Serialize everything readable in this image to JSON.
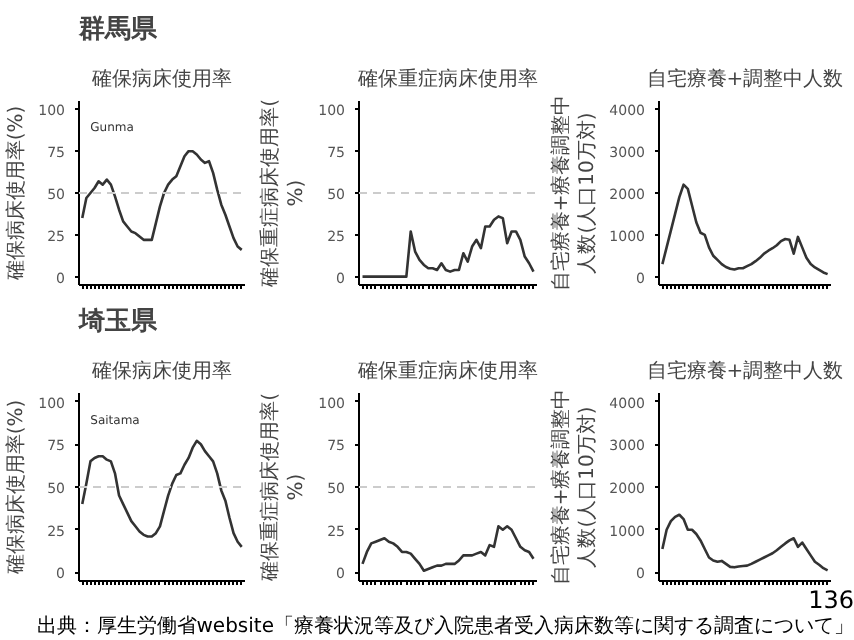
{
  "chart_data": [
    {
      "type": "line",
      "title": "確保病床使用率",
      "ylabel": "確保病床使用率(%)",
      "annotations": [
        "群馬県",
        "Gunma"
      ],
      "categories": [
        null,
        null,
        null,
        null,
        null,
        null,
        null,
        null,
        null,
        null,
        null,
        null,
        null,
        null,
        null,
        null,
        null,
        null,
        null,
        null,
        null,
        null,
        null,
        null,
        null,
        null,
        null,
        null,
        null,
        null,
        null,
        null,
        null,
        null,
        null,
        null,
        null,
        null,
        null,
        null
      ],
      "series": [
        {
          "color": "#333333",
          "values": [
            35,
            47,
            50,
            53,
            57,
            55,
            58,
            55,
            48,
            40,
            33,
            30,
            27,
            26,
            24,
            22,
            22,
            22,
            32,
            42,
            50,
            55,
            58,
            60,
            66,
            72,
            75,
            75,
            73,
            70,
            68,
            69,
            62,
            52,
            43,
            37,
            30,
            23,
            18,
            16
          ]
        }
      ],
      "ylim": [
        -5,
        105
      ],
      "yticks": [
        0,
        25,
        50,
        75,
        100
      ],
      "ref_lines": [
        {
          "axis": "y",
          "value": 50,
          "color": "#cccccc",
          "line_style": "dashed"
        }
      ],
      "grid": false
    },
    {
      "type": "line",
      "title": "確保重症病床使用率",
      "ylabel": "確保重症病床使用率(%)",
      "categories": [
        null,
        null,
        null,
        null,
        null,
        null,
        null,
        null,
        null,
        null,
        null,
        null,
        null,
        null,
        null,
        null,
        null,
        null,
        null,
        null,
        null,
        null,
        null,
        null,
        null,
        null,
        null,
        null,
        null,
        null,
        null,
        null,
        null,
        null,
        null,
        null,
        null,
        null,
        null,
        null
      ],
      "series": [
        {
          "color": "#333333",
          "values": [
            0,
            0,
            0,
            0,
            0,
            0,
            0,
            0,
            0,
            0,
            0,
            27,
            15,
            10,
            7,
            5,
            5,
            4,
            8,
            4,
            3,
            4,
            4,
            14,
            9,
            18,
            22,
            17,
            30,
            30,
            34,
            36,
            35,
            20,
            27,
            27,
            22,
            12,
            8,
            3
          ]
        }
      ],
      "ylim": [
        -5,
        105
      ],
      "yticks": [
        0,
        25,
        50,
        75,
        100
      ],
      "ref_lines": [
        {
          "axis": "y",
          "value": 50,
          "color": "#cccccc",
          "line_style": "dashed"
        }
      ],
      "grid": false
    },
    {
      "type": "line",
      "title": "自宅療養+調整中人数",
      "ylabel": "自宅療養+療養調整中人数(人口10万対)",
      "categories": [
        null,
        null,
        null,
        null,
        null,
        null,
        null,
        null,
        null,
        null,
        null,
        null,
        null,
        null,
        null,
        null,
        null,
        null,
        null,
        null,
        null,
        null,
        null,
        null,
        null,
        null,
        null,
        null,
        null,
        null,
        null,
        null,
        null,
        null,
        null,
        null,
        null,
        null,
        null,
        null
      ],
      "series": [
        {
          "color": "#333333",
          "values": [
            300,
            700,
            1100,
            1500,
            1900,
            2200,
            2100,
            1700,
            1300,
            1050,
            1000,
            700,
            500,
            400,
            300,
            230,
            190,
            170,
            200,
            200,
            250,
            300,
            370,
            450,
            550,
            620,
            680,
            750,
            850,
            900,
            880,
            550,
            950,
            700,
            450,
            300,
            220,
            160,
            100,
            60
          ]
        }
      ],
      "ylim": [
        -200,
        4200
      ],
      "yticks": [
        0,
        1000,
        2000,
        3000,
        4000
      ],
      "grid": false
    },
    {
      "type": "line",
      "title": "確保病床使用率",
      "ylabel": "確保病床使用率(%)",
      "annotations": [
        "埼玉県",
        "Saitama"
      ],
      "categories": [
        null,
        null,
        null,
        null,
        null,
        null,
        null,
        null,
        null,
        null,
        null,
        null,
        null,
        null,
        null,
        null,
        null,
        null,
        null,
        null,
        null,
        null,
        null,
        null,
        null,
        null,
        null,
        null,
        null,
        null,
        null,
        null,
        null,
        null,
        null,
        null,
        null,
        null,
        null,
        null
      ],
      "series": [
        {
          "color": "#333333",
          "values": [
            40,
            52,
            65,
            67,
            68,
            68,
            66,
            65,
            58,
            45,
            40,
            35,
            30,
            27,
            24,
            22,
            21,
            21,
            23,
            27,
            36,
            45,
            52,
            57,
            58,
            63,
            67,
            73,
            77,
            75,
            71,
            68,
            65,
            58,
            48,
            42,
            32,
            23,
            18,
            15
          ]
        }
      ],
      "ylim": [
        -5,
        105
      ],
      "yticks": [
        0,
        25,
        50,
        75,
        100
      ],
      "ref_lines": [
        {
          "axis": "y",
          "value": 50,
          "color": "#cccccc",
          "line_style": "dashed"
        }
      ],
      "grid": false
    },
    {
      "type": "line",
      "title": "確保重症病床使用率",
      "ylabel": "確保重症病床使用率(%)",
      "categories": [
        null,
        null,
        null,
        null,
        null,
        null,
        null,
        null,
        null,
        null,
        null,
        null,
        null,
        null,
        null,
        null,
        null,
        null,
        null,
        null,
        null,
        null,
        null,
        null,
        null,
        null,
        null,
        null,
        null,
        null,
        null,
        null,
        null,
        null,
        null,
        null,
        null,
        null,
        null,
        null
      ],
      "series": [
        {
          "color": "#333333",
          "values": [
            5,
            12,
            17,
            18,
            19,
            20,
            18,
            17,
            15,
            12,
            12,
            11,
            8,
            5,
            1,
            2,
            3,
            4,
            4,
            5,
            5,
            5,
            7,
            10,
            10,
            10,
            11,
            12,
            10,
            16,
            15,
            27,
            25,
            27,
            25,
            20,
            15,
            13,
            12,
            8
          ]
        }
      ],
      "ylim": [
        -5,
        105
      ],
      "yticks": [
        0,
        25,
        50,
        75,
        100
      ],
      "ref_lines": [
        {
          "axis": "y",
          "value": 50,
          "color": "#cccccc",
          "line_style": "dashed"
        }
      ],
      "grid": false
    },
    {
      "type": "line",
      "title": "自宅療養+調整中人数",
      "ylabel": "自宅療養+療養調整中人数(人口10万対)",
      "annotations": [
        "136",
        "出典：厚生労働省website「療養状況等及び入院患者受入病床数等に関する調査について」"
      ],
      "categories": [
        null,
        null,
        null,
        null,
        null,
        null,
        null,
        null,
        null,
        null,
        null,
        null,
        null,
        null,
        null,
        null,
        null,
        null,
        null,
        null,
        null,
        null,
        null,
        null,
        null,
        null,
        null,
        null,
        null,
        null,
        null,
        null,
        null,
        null,
        null,
        null,
        null,
        null,
        null,
        null
      ],
      "series": [
        {
          "color": "#333333",
          "values": [
            550,
            1000,
            1200,
            1300,
            1350,
            1250,
            1000,
            1000,
            900,
            750,
            550,
            350,
            280,
            250,
            270,
            200,
            130,
            120,
            140,
            150,
            160,
            200,
            250,
            300,
            350,
            400,
            450,
            520,
            600,
            680,
            750,
            800,
            600,
            700,
            550,
            400,
            250,
            180,
            100,
            50
          ]
        }
      ],
      "ylim": [
        -200,
        4200
      ],
      "yticks": [
        0,
        1000,
        2000,
        3000,
        4000
      ],
      "grid": false
    }
  ]
}
